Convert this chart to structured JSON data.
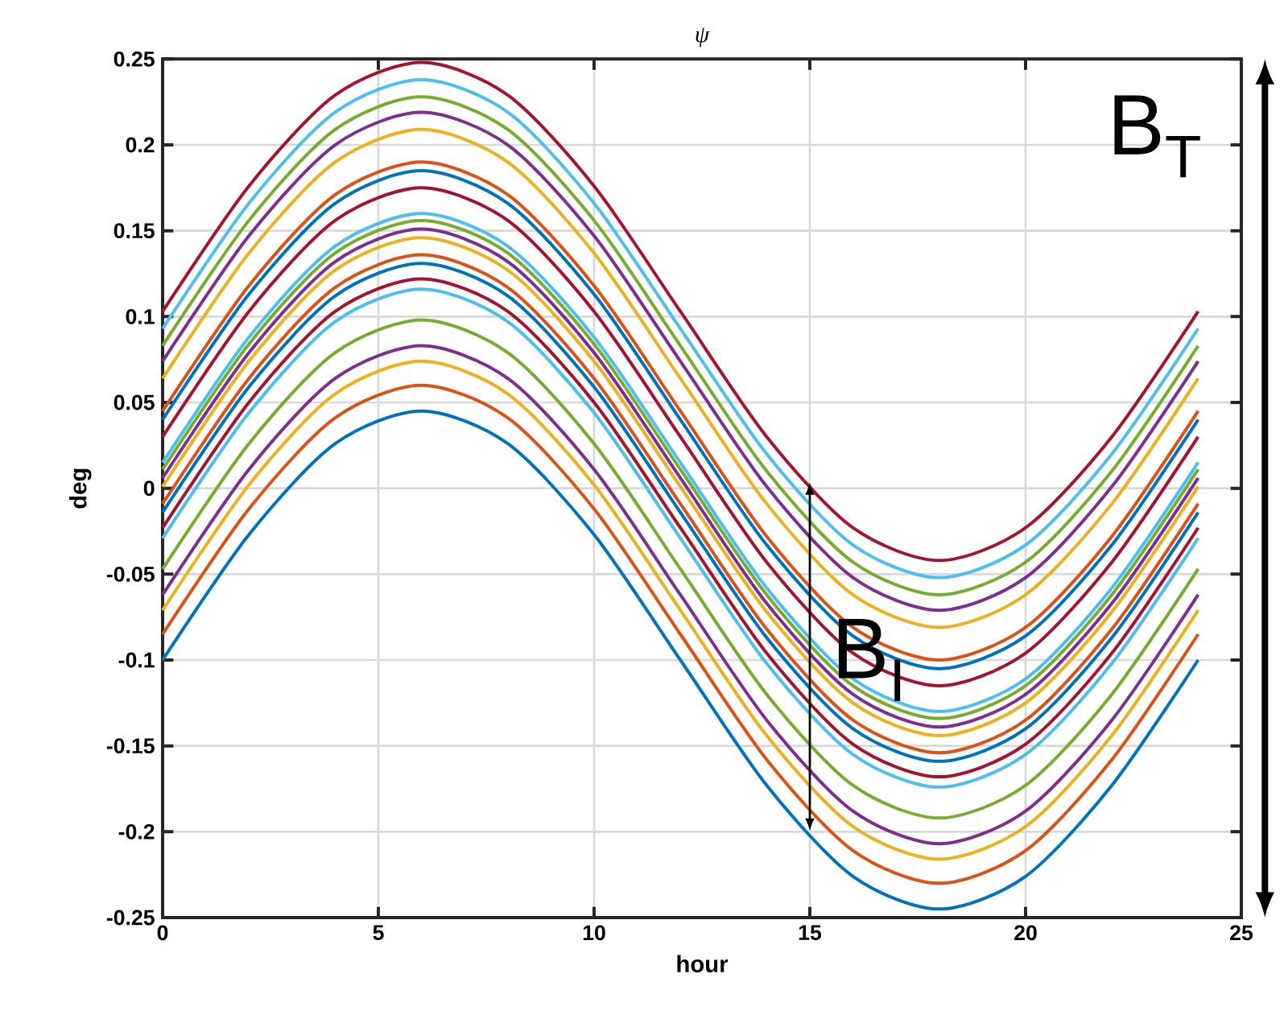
{
  "chart_data": {
    "type": "line",
    "title": "ψ",
    "xlabel": "hour",
    "ylabel": "deg",
    "x": [
      0,
      2,
      4,
      6,
      8,
      10,
      12,
      14,
      16,
      18,
      20,
      22,
      24
    ],
    "xlim": [
      0,
      25
    ],
    "xticks": [
      0,
      5,
      10,
      15,
      20,
      25
    ],
    "ylim": [
      -0.25,
      0.25
    ],
    "yticks": [
      -0.25,
      -0.2,
      -0.15,
      -0.1,
      -0.05,
      0,
      0.05,
      0.1,
      0.15,
      0.2,
      0.25
    ],
    "grid": true,
    "marker": "none",
    "line_style": "solid",
    "annotations": [
      {
        "text": "B$_{I}$",
        "x": 15,
        "y": -0.1
      },
      "B$_{T}$"
    ],
    "series": [
      {
        "color": "#0072bd",
        "values": [
          -0.1,
          -0.027,
          0.026,
          0.045,
          0.026,
          -0.027,
          -0.1,
          -0.173,
          -0.226,
          -0.245,
          -0.226,
          -0.173,
          -0.1
        ]
      },
      {
        "color": "#d95319",
        "values": [
          -0.085,
          -0.012,
          0.041,
          0.06,
          0.041,
          -0.012,
          -0.085,
          -0.158,
          -0.211,
          -0.23,
          -0.211,
          -0.158,
          -0.085
        ]
      },
      {
        "color": "#edb120",
        "values": [
          -0.071,
          0.002,
          0.055,
          0.074,
          0.055,
          0.002,
          -0.071,
          -0.144,
          -0.197,
          -0.216,
          -0.197,
          -0.144,
          -0.071
        ]
      },
      {
        "color": "#7e2f8e",
        "values": [
          -0.062,
          0.011,
          0.064,
          0.083,
          0.064,
          0.011,
          -0.062,
          -0.135,
          -0.188,
          -0.207,
          -0.188,
          -0.135,
          -0.062
        ]
      },
      {
        "color": "#77ac30",
        "values": [
          -0.047,
          0.026,
          0.079,
          0.098,
          0.079,
          0.026,
          -0.047,
          -0.12,
          -0.173,
          -0.192,
          -0.173,
          -0.12,
          -0.047
        ]
      },
      {
        "color": "#4dbeee",
        "values": [
          -0.029,
          0.044,
          0.097,
          0.116,
          0.097,
          0.044,
          -0.029,
          -0.102,
          -0.155,
          -0.174,
          -0.155,
          -0.102,
          -0.029
        ]
      },
      {
        "color": "#a2142f",
        "values": [
          -0.023,
          0.05,
          0.103,
          0.122,
          0.103,
          0.05,
          -0.023,
          -0.096,
          -0.149,
          -0.168,
          -0.149,
          -0.096,
          -0.023
        ]
      },
      {
        "color": "#0072bd",
        "values": [
          -0.014,
          0.059,
          0.112,
          0.131,
          0.112,
          0.059,
          -0.014,
          -0.087,
          -0.14,
          -0.159,
          -0.14,
          -0.087,
          -0.014
        ]
      },
      {
        "color": "#d95319",
        "values": [
          -0.009,
          0.064,
          0.117,
          0.136,
          0.117,
          0.064,
          -0.009,
          -0.082,
          -0.135,
          -0.154,
          -0.135,
          -0.082,
          -0.009
        ]
      },
      {
        "color": "#edb120",
        "values": [
          0.001,
          0.074,
          0.127,
          0.146,
          0.127,
          0.074,
          0.001,
          -0.072,
          -0.125,
          -0.144,
          -0.125,
          -0.072,
          0.001
        ]
      },
      {
        "color": "#7e2f8e",
        "values": [
          0.006,
          0.079,
          0.132,
          0.151,
          0.132,
          0.079,
          0.006,
          -0.067,
          -0.12,
          -0.139,
          -0.12,
          -0.067,
          0.006
        ]
      },
      {
        "color": "#77ac30",
        "values": [
          0.011,
          0.084,
          0.137,
          0.156,
          0.137,
          0.084,
          0.011,
          -0.062,
          -0.115,
          -0.134,
          -0.115,
          -0.062,
          0.011
        ]
      },
      {
        "color": "#4dbeee",
        "values": [
          0.015,
          0.088,
          0.141,
          0.16,
          0.141,
          0.088,
          0.015,
          -0.058,
          -0.111,
          -0.13,
          -0.111,
          -0.058,
          0.015
        ]
      },
      {
        "color": "#a2142f",
        "values": [
          0.03,
          0.103,
          0.156,
          0.175,
          0.156,
          0.103,
          0.03,
          -0.043,
          -0.096,
          -0.115,
          -0.096,
          -0.043,
          0.03
        ]
      },
      {
        "color": "#0072bd",
        "values": [
          0.04,
          0.113,
          0.166,
          0.185,
          0.166,
          0.113,
          0.04,
          -0.033,
          -0.086,
          -0.105,
          -0.086,
          -0.033,
          0.04
        ]
      },
      {
        "color": "#d95319",
        "values": [
          0.045,
          0.118,
          0.171,
          0.19,
          0.171,
          0.118,
          0.045,
          -0.028,
          -0.081,
          -0.1,
          -0.081,
          -0.028,
          0.045
        ]
      },
      {
        "color": "#edb120",
        "values": [
          0.064,
          0.137,
          0.19,
          0.209,
          0.19,
          0.137,
          0.064,
          -0.009,
          -0.062,
          -0.081,
          -0.062,
          -0.009,
          0.064
        ]
      },
      {
        "color": "#7e2f8e",
        "values": [
          0.074,
          0.147,
          0.2,
          0.219,
          0.2,
          0.147,
          0.074,
          0.001,
          -0.052,
          -0.071,
          -0.052,
          0.001,
          0.074
        ]
      },
      {
        "color": "#77ac30",
        "values": [
          0.083,
          0.156,
          0.209,
          0.228,
          0.209,
          0.156,
          0.083,
          0.01,
          -0.043,
          -0.062,
          -0.043,
          0.01,
          0.083
        ]
      },
      {
        "color": "#4dbeee",
        "values": [
          0.093,
          0.166,
          0.219,
          0.238,
          0.219,
          0.166,
          0.093,
          0.02,
          -0.033,
          -0.052,
          -0.033,
          0.02,
          0.093
        ]
      },
      {
        "color": "#a2142f",
        "values": [
          0.103,
          0.176,
          0.229,
          0.248,
          0.229,
          0.176,
          0.103,
          0.03,
          -0.023,
          -0.042,
          -0.023,
          0.03,
          0.103
        ]
      }
    ]
  }
}
